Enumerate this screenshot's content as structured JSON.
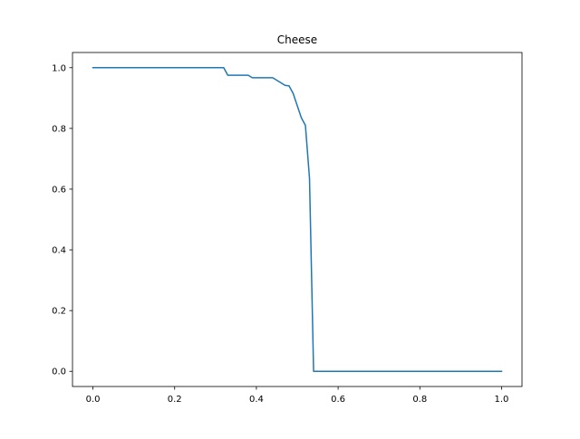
{
  "chart_data": {
    "type": "line",
    "title": "Cheese",
    "xlabel": "",
    "ylabel": "",
    "xlim": [
      -0.05,
      1.05
    ],
    "ylim": [
      -0.05,
      1.05
    ],
    "xticks": [
      0.0,
      0.2,
      0.4,
      0.6,
      0.8,
      1.0
    ],
    "xtick_labels": [
      "0.0",
      "0.2",
      "0.4",
      "0.6",
      "0.8",
      "1.0"
    ],
    "yticks": [
      0.0,
      0.2,
      0.4,
      0.6,
      0.8,
      1.0
    ],
    "ytick_labels": [
      "0.0",
      "0.2",
      "0.4",
      "0.6",
      "0.8",
      "1.0"
    ],
    "grid": false,
    "legend": null,
    "series": [
      {
        "color": "#1f77b4",
        "x": [
          0.0,
          0.1,
          0.2,
          0.32,
          0.33,
          0.38,
          0.39,
          0.44,
          0.47,
          0.48,
          0.49,
          0.5,
          0.51,
          0.52,
          0.53,
          0.54,
          0.6,
          0.8,
          1.0
        ],
        "y": [
          1.0,
          1.0,
          1.0,
          1.0,
          0.975,
          0.975,
          0.967,
          0.967,
          0.942,
          0.94,
          0.915,
          0.875,
          0.835,
          0.81,
          0.635,
          0.0,
          0.0,
          0.0,
          0.0
        ]
      }
    ]
  }
}
